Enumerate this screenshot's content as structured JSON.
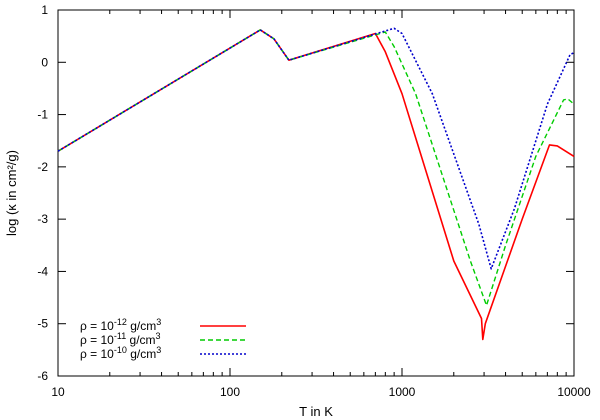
{
  "chart_data": {
    "type": "line",
    "xlabel": "T in K",
    "ylabel": "log (κ in cm²/g)",
    "x_scale": "log",
    "xlim": [
      10,
      10000
    ],
    "ylim": [
      -6,
      1
    ],
    "x_ticks": [
      {
        "value": 10,
        "label": "10"
      },
      {
        "value": 100,
        "label": "100"
      },
      {
        "value": 1000,
        "label": "1000"
      },
      {
        "value": 10000,
        "label": "10000"
      }
    ],
    "y_ticks": [
      {
        "value": 1,
        "label": "1"
      },
      {
        "value": 0,
        "label": "0"
      },
      {
        "value": -1,
        "label": "-1"
      },
      {
        "value": -2,
        "label": "-2"
      },
      {
        "value": -3,
        "label": "-3"
      },
      {
        "value": -4,
        "label": "-4"
      },
      {
        "value": -5,
        "label": "-5"
      },
      {
        "value": -6,
        "label": "-6"
      }
    ],
    "grid": false,
    "legend_position": "bottom-left",
    "series": [
      {
        "name": "ρ = 10^-12 g/cm^3",
        "label_parts": [
          "ρ = 10",
          "-12",
          " g/cm",
          "3"
        ],
        "color": "#ff0000",
        "dash": "solid",
        "points": [
          [
            10,
            -1.7
          ],
          [
            150,
            0.62
          ],
          [
            180,
            0.45
          ],
          [
            220,
            0.04
          ],
          [
            700,
            0.55
          ],
          [
            800,
            0.2
          ],
          [
            1000,
            -0.6
          ],
          [
            2000,
            -3.8
          ],
          [
            2900,
            -4.9
          ],
          [
            2950,
            -5.3
          ],
          [
            3050,
            -5.0
          ],
          [
            5000,
            -3.0
          ],
          [
            7200,
            -1.58
          ],
          [
            8000,
            -1.6
          ],
          [
            10000,
            -1.8
          ]
        ]
      },
      {
        "name": "ρ = 10^-11 g/cm^3",
        "label_parts": [
          "ρ = 10",
          "-11",
          " g/cm",
          "3"
        ],
        "color": "#00cc00",
        "dash": "dashed",
        "points": [
          [
            10,
            -1.7
          ],
          [
            150,
            0.62
          ],
          [
            180,
            0.45
          ],
          [
            220,
            0.04
          ],
          [
            800,
            0.58
          ],
          [
            900,
            0.3
          ],
          [
            1200,
            -0.6
          ],
          [
            2500,
            -3.8
          ],
          [
            3100,
            -4.65
          ],
          [
            4000,
            -3.5
          ],
          [
            6000,
            -1.8
          ],
          [
            8700,
            -0.72
          ],
          [
            9200,
            -0.7
          ],
          [
            10000,
            -0.8
          ]
        ]
      },
      {
        "name": "ρ = 10^-10 g/cm^3",
        "label_parts": [
          "ρ = 10",
          "-10",
          " g/cm",
          "3"
        ],
        "color": "#0000cc",
        "dash": "dotted",
        "points": [
          [
            10,
            -1.7
          ],
          [
            150,
            0.62
          ],
          [
            180,
            0.45
          ],
          [
            220,
            0.04
          ],
          [
            900,
            0.65
          ],
          [
            1000,
            0.55
          ],
          [
            1500,
            -0.6
          ],
          [
            2800,
            -3.1
          ],
          [
            3300,
            -3.95
          ],
          [
            4500,
            -2.8
          ],
          [
            7000,
            -0.8
          ],
          [
            9500,
            0.15
          ],
          [
            10000,
            0.18
          ]
        ]
      }
    ]
  }
}
